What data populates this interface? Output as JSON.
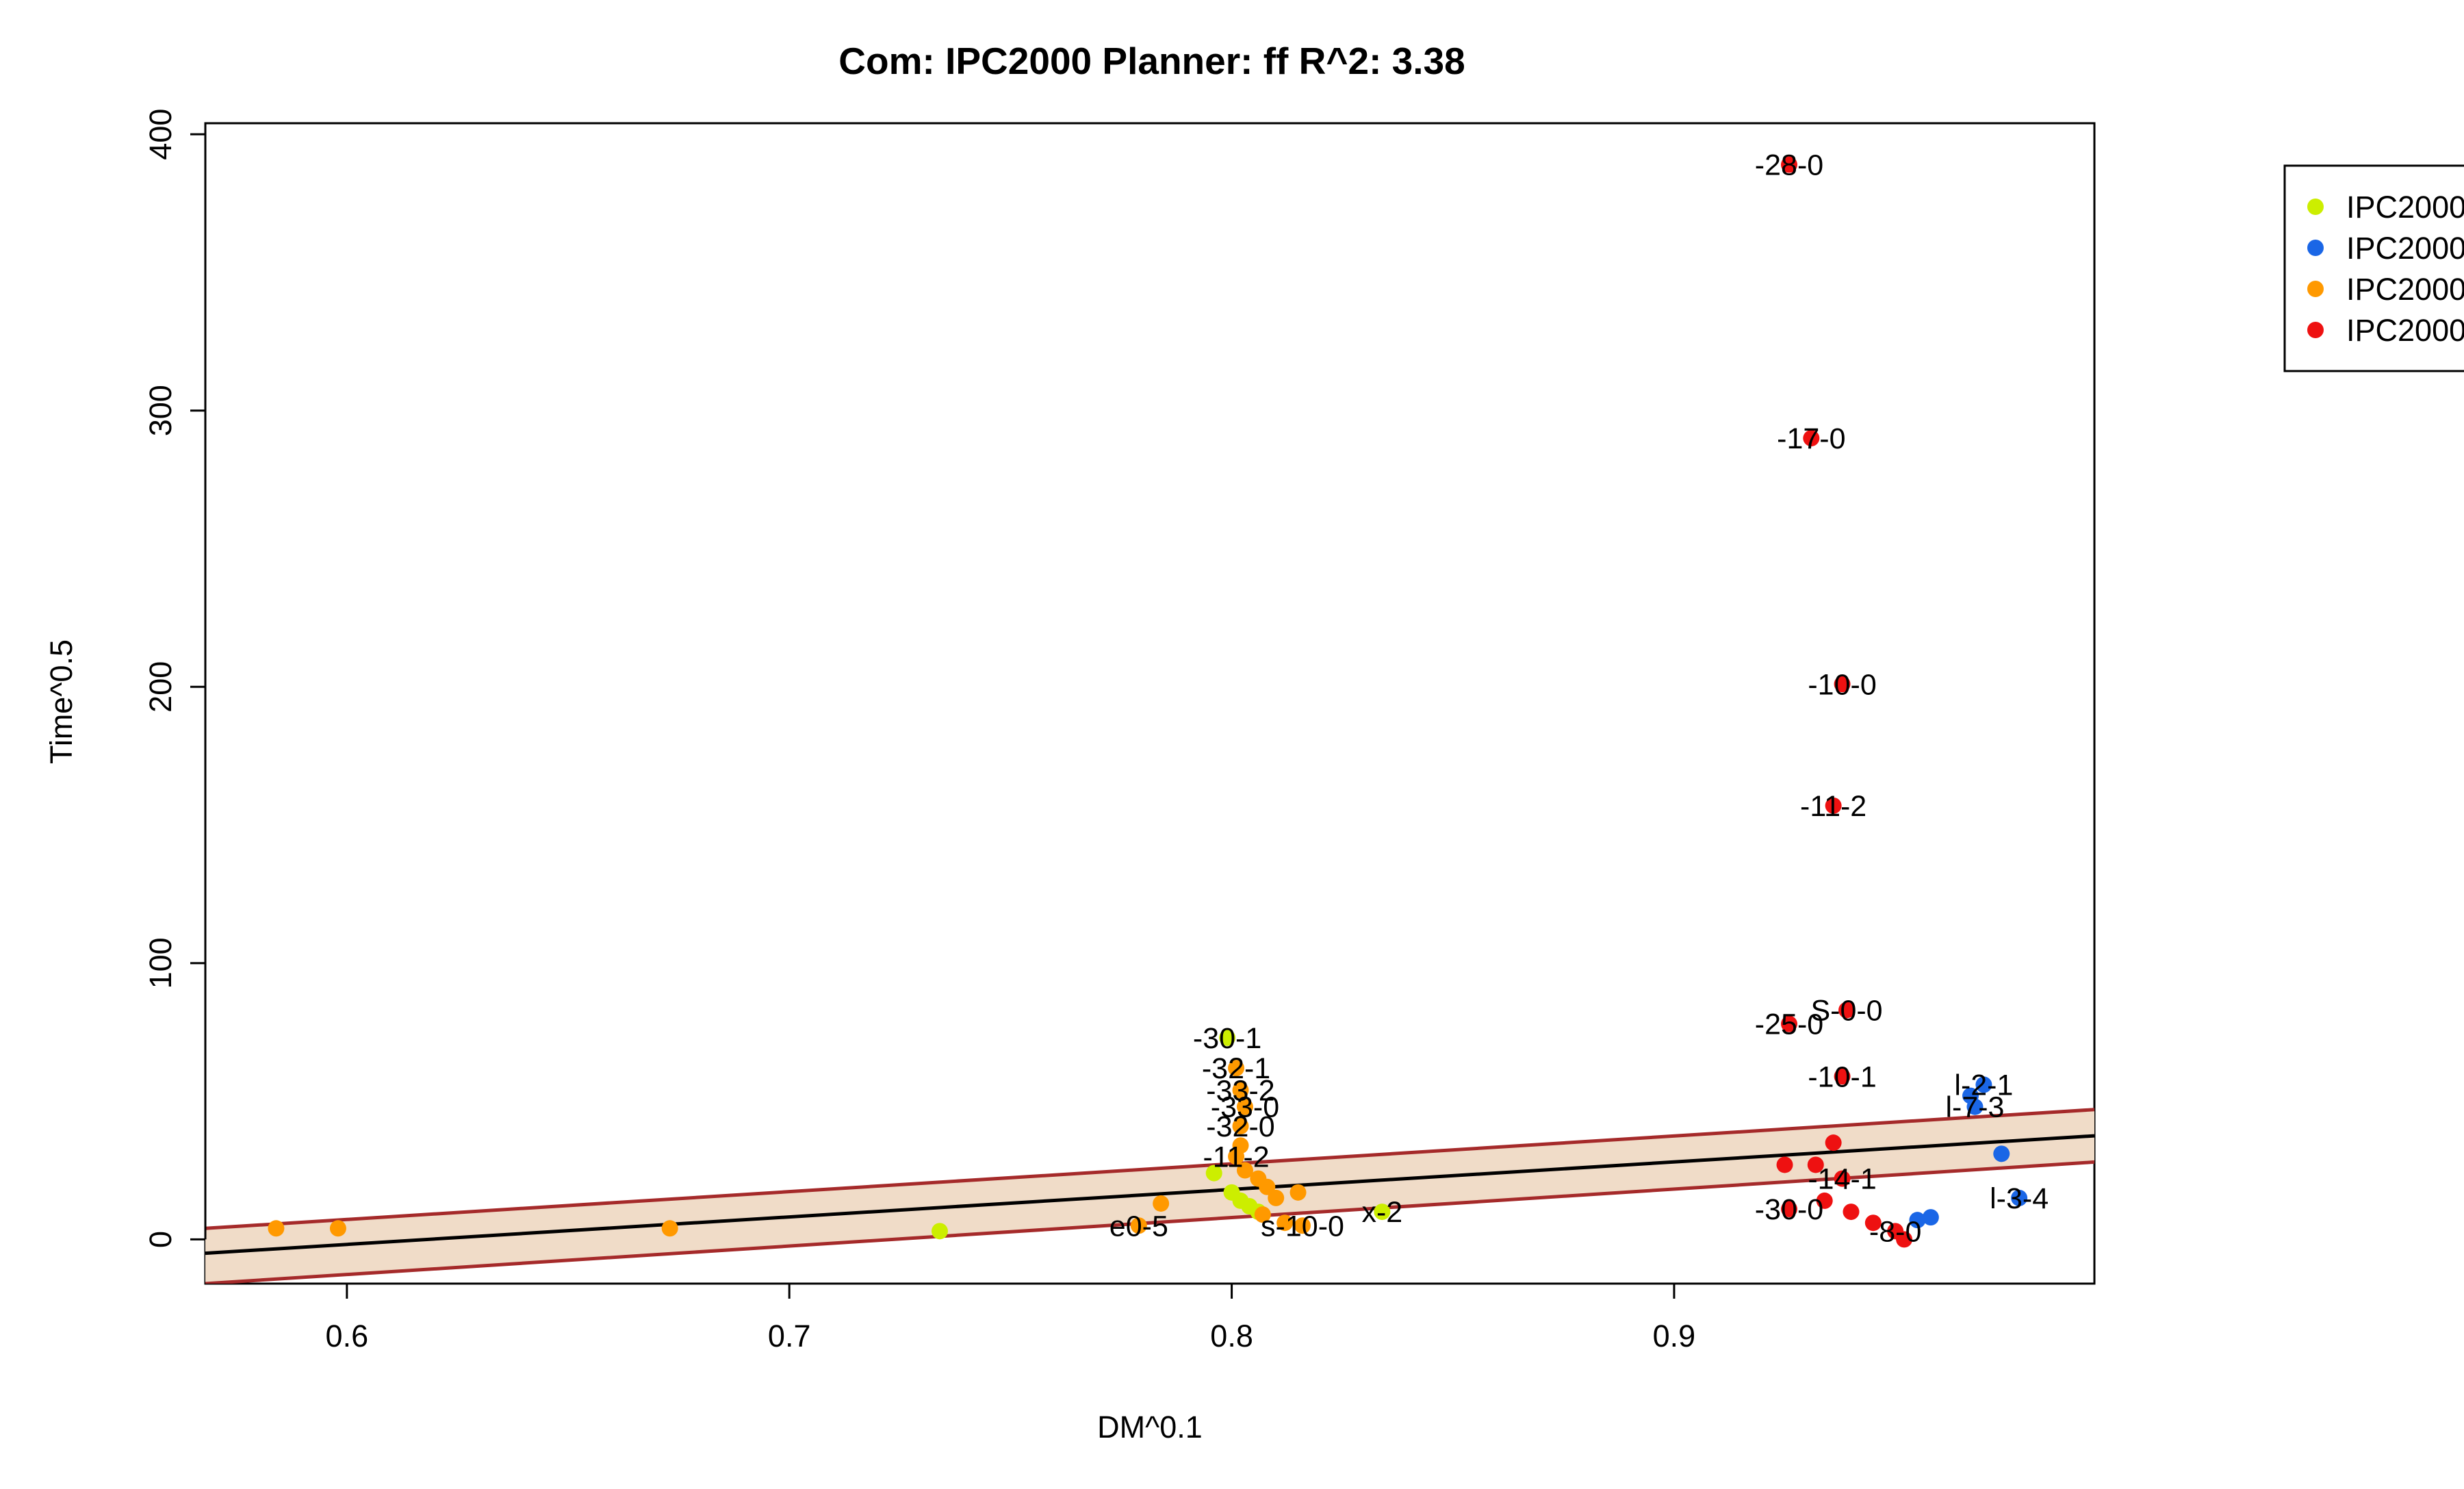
{
  "chart_data": {
    "type": "scatter",
    "title": "Com: IPC2000 Planner: ff R^2: 3.38",
    "xlabel": "DM^0.1",
    "ylabel": "Time^0.5",
    "xlim": [
      0.568,
      0.995
    ],
    "ylim": [
      -16,
      404
    ],
    "x_ticks": [
      0.6,
      0.7,
      0.8,
      0.9
    ],
    "x_tick_labels": [
      "0.6",
      "0.7",
      "0.8",
      "0.9"
    ],
    "y_ticks": [
      0,
      100,
      200,
      300,
      400
    ],
    "y_tick_labels": [
      "0",
      "100",
      "200",
      "300",
      "400"
    ],
    "grid": false,
    "legend_position": "top-right",
    "fit": {
      "line": [
        [
          0.568,
          -5
        ],
        [
          0.995,
          37.5
        ]
      ],
      "band_upper": [
        [
          0.568,
          4
        ],
        [
          0.995,
          47
        ]
      ],
      "band_lower": [
        [
          0.568,
          -16
        ],
        [
          0.995,
          28
        ]
      ],
      "line_color": "#000000",
      "band_color": "#a52a2a",
      "band_fill": "#f0dcc8"
    },
    "series": [
      {
        "name": "IPC2000",
        "color": "#ccee00",
        "points": [
          {
            "x": 0.734,
            "y": 3
          },
          {
            "x": 0.796,
            "y": 24
          },
          {
            "x": 0.799,
            "y": 73,
            "label": "-30-1"
          },
          {
            "x": 0.8,
            "y": 17
          },
          {
            "x": 0.802,
            "y": 14
          },
          {
            "x": 0.804,
            "y": 12
          },
          {
            "x": 0.806,
            "y": 10
          },
          {
            "x": 0.834,
            "y": 10,
            "label": "x-2"
          }
        ]
      },
      {
        "name": "IPC2000",
        "color": "#1a66e6",
        "points": [
          {
            "x": 0.967,
            "y": 52
          },
          {
            "x": 0.97,
            "y": 56,
            "label": "l-2-1"
          },
          {
            "x": 0.968,
            "y": 48,
            "label": "l-7-3"
          },
          {
            "x": 0.974,
            "y": 31
          },
          {
            "x": 0.978,
            "y": 15,
            "label": "l-3-4"
          },
          {
            "x": 0.958,
            "y": 8
          },
          {
            "x": 0.955,
            "y": 7
          }
        ]
      },
      {
        "name": "IPC2000",
        "color": "#ff9900",
        "points": [
          {
            "x": 0.584,
            "y": 4
          },
          {
            "x": 0.598,
            "y": 4
          },
          {
            "x": 0.673,
            "y": 4
          },
          {
            "x": 0.784,
            "y": 13
          },
          {
            "x": 0.779,
            "y": 5,
            "label": "e0-5"
          },
          {
            "x": 0.801,
            "y": 62,
            "label": "-32-1"
          },
          {
            "x": 0.802,
            "y": 54,
            "label": "-33-2"
          },
          {
            "x": 0.803,
            "y": 48,
            "label": "-33-0"
          },
          {
            "x": 0.802,
            "y": 41,
            "label": "-32-0"
          },
          {
            "x": 0.802,
            "y": 34
          },
          {
            "x": 0.801,
            "y": 30,
            "label": "-11-2"
          },
          {
            "x": 0.803,
            "y": 25
          },
          {
            "x": 0.806,
            "y": 22
          },
          {
            "x": 0.808,
            "y": 19
          },
          {
            "x": 0.81,
            "y": 15
          },
          {
            "x": 0.815,
            "y": 17
          },
          {
            "x": 0.807,
            "y": 9
          },
          {
            "x": 0.812,
            "y": 6
          },
          {
            "x": 0.816,
            "y": 5,
            "label": "s-10-0"
          }
        ]
      },
      {
        "name": "IPC2000",
        "color": "#ee1111",
        "points": [
          {
            "x": 0.926,
            "y": 389,
            "label": "-28-0"
          },
          {
            "x": 0.931,
            "y": 290,
            "label": "-17-0"
          },
          {
            "x": 0.938,
            "y": 201,
            "label": "-10-0"
          },
          {
            "x": 0.936,
            "y": 157,
            "label": "-11-2"
          },
          {
            "x": 0.939,
            "y": 83,
            "label": "S-0-0"
          },
          {
            "x": 0.926,
            "y": 78,
            "label": "-25-0"
          },
          {
            "x": 0.938,
            "y": 59,
            "label": "-10-1"
          },
          {
            "x": 0.936,
            "y": 35
          },
          {
            "x": 0.925,
            "y": 27
          },
          {
            "x": 0.932,
            "y": 27
          },
          {
            "x": 0.938,
            "y": 22,
            "label": "-14-1"
          },
          {
            "x": 0.934,
            "y": 14
          },
          {
            "x": 0.94,
            "y": 10
          },
          {
            "x": 0.926,
            "y": 11,
            "label": "-30-0"
          },
          {
            "x": 0.945,
            "y": 6
          },
          {
            "x": 0.95,
            "y": 3,
            "label": "-8-0"
          },
          {
            "x": 0.952,
            "y": 0
          }
        ]
      }
    ]
  }
}
